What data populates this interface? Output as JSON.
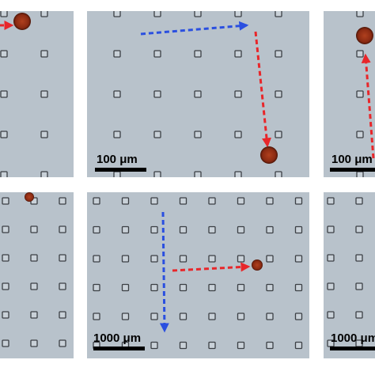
{
  "panels": [
    {
      "scale_label": "100 μm"
    },
    {
      "scale_label": "100 μm"
    },
    {
      "scale_label": "1000 μm"
    },
    {
      "scale_label": "1000 μm"
    }
  ]
}
